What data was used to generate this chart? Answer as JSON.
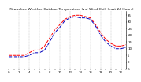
{
  "title": "Milwaukee Weather Outdoor Temperature (vs) Wind Chill (Last 24 Hours)",
  "temp_color": "#ff0000",
  "wind_chill_color": "#0000bb",
  "background_color": "#ffffff",
  "grid_color": "#888888",
  "x": [
    0,
    1,
    2,
    3,
    4,
    5,
    6,
    7,
    8,
    9,
    10,
    11,
    12,
    13,
    14,
    15,
    16,
    17,
    18,
    19,
    20,
    21,
    22,
    23
  ],
  "temp": [
    5,
    5,
    5,
    5,
    7,
    9,
    9,
    12,
    18,
    24,
    28,
    32,
    34,
    35,
    35,
    34,
    33,
    28,
    22,
    17,
    14,
    12,
    12,
    13
  ],
  "wind_chill": [
    4,
    4,
    4,
    4,
    5,
    7,
    7,
    9,
    15,
    22,
    26,
    31,
    33,
    34,
    33,
    33,
    32,
    27,
    20,
    15,
    12,
    10,
    10,
    11
  ],
  "ylim": [
    -5,
    38
  ],
  "xlim": [
    0,
    23
  ],
  "ytick_labels": [
    "35",
    "30",
    "25",
    "20",
    "15",
    "10",
    "5",
    "0",
    "-5"
  ],
  "ytick_vals": [
    35,
    30,
    25,
    20,
    15,
    10,
    5,
    0,
    -5
  ],
  "title_fontsize": 3.2,
  "label_fontsize": 2.8,
  "linewidth": 0.7
}
